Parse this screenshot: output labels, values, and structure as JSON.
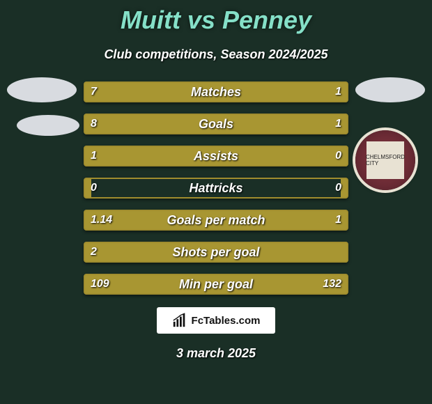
{
  "title": "Muitt vs Penney",
  "subtitle": "Club competitions, Season 2024/2025",
  "left_color": "#a89632",
  "right_color": "#a89632",
  "border_color": "#a08d2e",
  "background_color": "#1a2f26",
  "rows": [
    {
      "label": "Matches",
      "left": "7",
      "right": "1",
      "left_pct": 87.5,
      "right_pct": 12.5
    },
    {
      "label": "Goals",
      "left": "8",
      "right": "1",
      "left_pct": 88.9,
      "right_pct": 11.1
    },
    {
      "label": "Assists",
      "left": "1",
      "right": "0",
      "left_pct": 100,
      "right_pct": 3
    },
    {
      "label": "Hattricks",
      "left": "0",
      "right": "0",
      "left_pct": 3,
      "right_pct": 3
    },
    {
      "label": "Goals per match",
      "left": "1.14",
      "right": "1",
      "left_pct": 53.3,
      "right_pct": 46.7
    },
    {
      "label": "Shots per goal",
      "left": "2",
      "right": "",
      "left_pct": 100,
      "right_pct": 0
    },
    {
      "label": "Min per goal",
      "left": "109",
      "right": "132",
      "left_pct": 45.2,
      "right_pct": 54.8
    }
  ],
  "site_label": "FcTables.com",
  "date": "3 march 2025",
  "crest_text": "CHELMSFORD CITY"
}
